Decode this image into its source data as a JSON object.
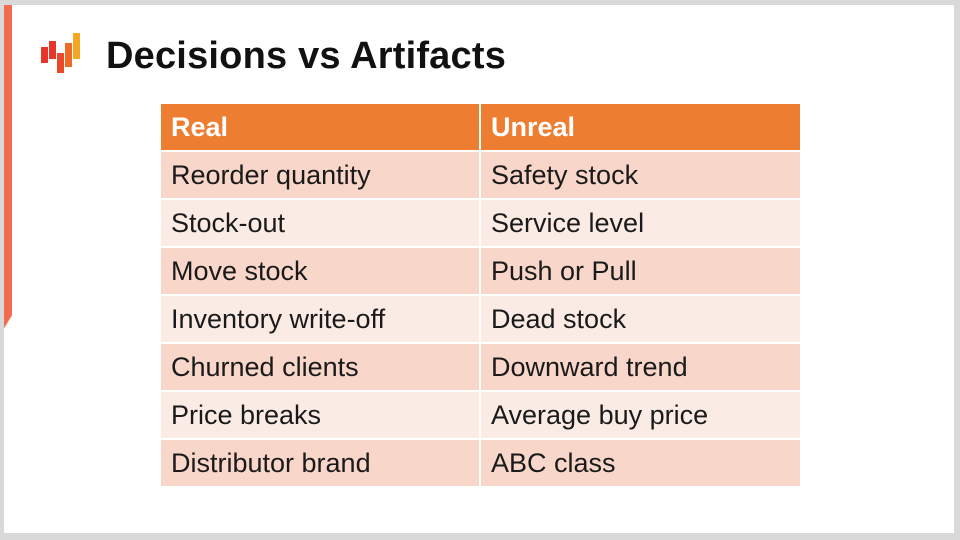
{
  "slide": {
    "title": "Decisions vs Artifacts"
  },
  "colors": {
    "accent": "#f26b4e",
    "header_bg": "#ed7d31",
    "row_odd": "#f8d6c9",
    "row_even": "#fbebe5",
    "logo_red": "#e8352b",
    "logo_orange": "#f5a623"
  },
  "icons": {
    "logo": "company-logo-bars"
  },
  "table": {
    "headers": [
      "Real",
      "Unreal"
    ],
    "rows": [
      [
        "Reorder quantity",
        "Safety stock"
      ],
      [
        "Stock-out",
        "Service level"
      ],
      [
        "Move stock",
        "Push or Pull"
      ],
      [
        "Inventory write-off",
        "Dead stock"
      ],
      [
        "Churned clients",
        "Downward trend"
      ],
      [
        "Price breaks",
        "Average buy price"
      ],
      [
        "Distributor brand",
        "ABC class"
      ]
    ]
  }
}
